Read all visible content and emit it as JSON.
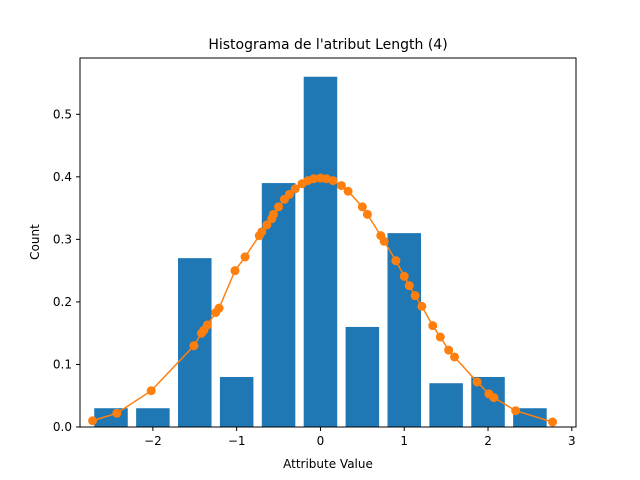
{
  "chart_data": {
    "type": "bar",
    "title": "Histograma de l'atribut Length (4)",
    "xlabel": "Attribute Value",
    "ylabel": "Count",
    "xlim": [
      -2.87,
      3.05
    ],
    "ylim": [
      0,
      0.59
    ],
    "x_ticks": [
      -2,
      -1,
      0,
      1,
      2,
      3
    ],
    "x_tick_labels": [
      "−2",
      "−1",
      "0",
      "1",
      "2",
      "3"
    ],
    "y_ticks": [
      0.0,
      0.1,
      0.2,
      0.3,
      0.4,
      0.5
    ],
    "y_tick_labels": [
      "0.0",
      "0.1",
      "0.2",
      "0.3",
      "0.4",
      "0.5"
    ],
    "bar_color": "#1f77b4",
    "line_color": "#ff7f0e",
    "grid": false,
    "bars": {
      "centers": [
        -2.5,
        -2.0,
        -1.5,
        -1.0,
        -0.5,
        0.0,
        0.5,
        1.0,
        1.5,
        2.0,
        2.5
      ],
      "width": 0.4,
      "values": [
        0.03,
        0.03,
        0.27,
        0.08,
        0.39,
        0.56,
        0.16,
        0.31,
        0.07,
        0.08,
        0.03
      ]
    },
    "series": [
      {
        "type": "line",
        "marker": "circle",
        "x": [
          -2.72,
          -2.43,
          -2.02,
          -1.51,
          -1.42,
          -1.39,
          -1.35,
          -1.25,
          -1.21,
          -1.02,
          -0.9,
          -0.73,
          -0.7,
          -0.64,
          -0.58,
          -0.56,
          -0.5,
          -0.43,
          -0.37,
          -0.3,
          -0.22,
          -0.15,
          -0.08,
          0.0,
          0.07,
          0.15,
          0.25,
          0.33,
          0.5,
          0.56,
          0.72,
          0.76,
          0.9,
          1.0,
          1.06,
          1.13,
          1.21,
          1.34,
          1.43,
          1.53,
          1.6,
          1.87,
          2.01,
          2.07,
          2.33,
          2.77
        ],
        "y": [
          0.01,
          0.022,
          0.058,
          0.13,
          0.15,
          0.155,
          0.163,
          0.183,
          0.19,
          0.25,
          0.272,
          0.306,
          0.312,
          0.323,
          0.333,
          0.34,
          0.352,
          0.364,
          0.372,
          0.381,
          0.389,
          0.394,
          0.397,
          0.398,
          0.397,
          0.394,
          0.386,
          0.377,
          0.352,
          0.34,
          0.306,
          0.297,
          0.266,
          0.241,
          0.226,
          0.21,
          0.193,
          0.162,
          0.144,
          0.123,
          0.112,
          0.072,
          0.053,
          0.047,
          0.026,
          0.008
        ]
      }
    ]
  }
}
